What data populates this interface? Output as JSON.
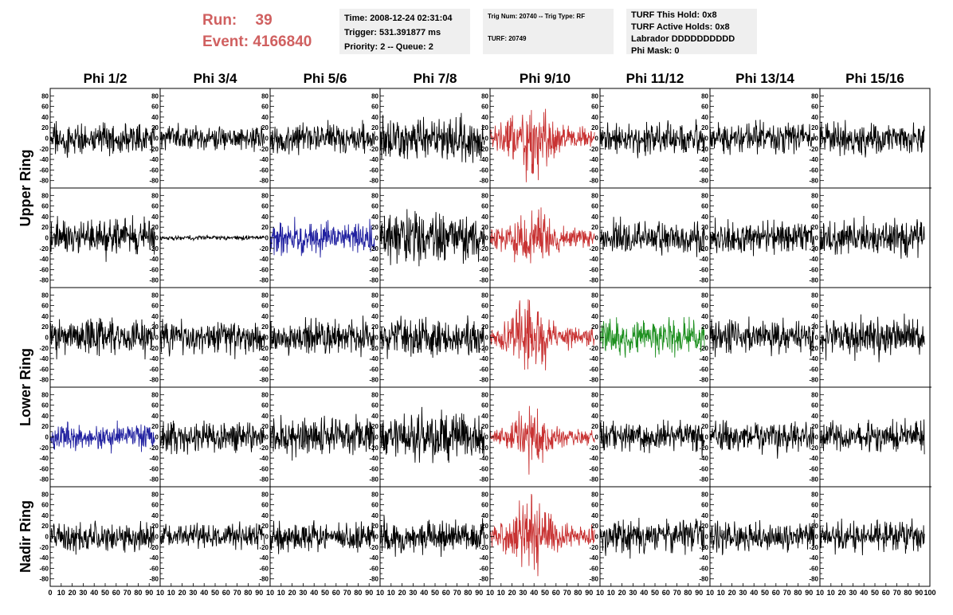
{
  "run_info": {
    "run_label": "Run:",
    "run_value": "39",
    "event_label": "Event:",
    "event_value": "4166840"
  },
  "info_boxes": {
    "time": [
      "Time: 2008-12-24 02:31:04",
      "Trigger: 531.391877 ms",
      "Priority: 2 -- Queue: 2"
    ],
    "trig": [
      "Trig Num: 20740 -- Trig Type: RF",
      "TURF: 20749"
    ],
    "turf": [
      "TURF This Hold: 0x8",
      "TURF Active Holds: 0x8",
      "Labrador DDDDDDDDDD",
      "Phi Mask: 0"
    ]
  },
  "colors": {
    "normal": "#000000",
    "red": "#c83232",
    "blue": "#2020a0",
    "green": "#1e9020"
  },
  "chart_data": {
    "type": "line",
    "columns": [
      "Phi 1/2",
      "Phi 3/4",
      "Phi 5/6",
      "Phi 7/8",
      "Phi 9/10",
      "Phi 11/12",
      "Phi 13/14",
      "Phi 15/16"
    ],
    "ring_labels": [
      {
        "text": "Upper Ring",
        "rows": [
          0,
          1
        ]
      },
      {
        "text": "Lower Ring",
        "rows": [
          2,
          3
        ]
      },
      {
        "text": "Nadir Ring",
        "rows": [
          4,
          4
        ]
      }
    ],
    "xlim": [
      0,
      100
    ],
    "ylim": [
      -85,
      85
    ],
    "yticks": [
      -80,
      -60,
      -40,
      -20,
      0,
      20,
      40,
      60,
      80
    ],
    "xticks": [
      0,
      10,
      20,
      30,
      40,
      50,
      60,
      70,
      80,
      90,
      100
    ],
    "x_range": [
      0,
      95
    ],
    "panels": [
      [
        {
          "amp": 14,
          "color": "normal",
          "seed": 11
        },
        {
          "amp": 11,
          "color": "normal",
          "seed": 12
        },
        {
          "amp": 13,
          "color": "normal",
          "seed": 13
        },
        {
          "amp": 18,
          "color": "normal",
          "seed": 14
        },
        {
          "amp": 30,
          "color": "red",
          "seed": 15,
          "pulse": true
        },
        {
          "amp": 14,
          "color": "normal",
          "seed": 16
        },
        {
          "amp": 13,
          "color": "normal",
          "seed": 17
        },
        {
          "amp": 14,
          "color": "normal",
          "seed": 18
        }
      ],
      [
        {
          "amp": 16,
          "color": "normal",
          "seed": 21
        },
        {
          "amp": 2,
          "color": "normal",
          "seed": 22
        },
        {
          "amp": 14,
          "color": "blue",
          "seed": 23
        },
        {
          "amp": 21,
          "color": "normal",
          "seed": 24
        },
        {
          "amp": 25,
          "color": "red",
          "seed": 25,
          "pulse": true
        },
        {
          "amp": 15,
          "color": "normal",
          "seed": 26
        },
        {
          "amp": 14,
          "color": "normal",
          "seed": 27
        },
        {
          "amp": 16,
          "color": "normal",
          "seed": 28
        }
      ],
      [
        {
          "amp": 16,
          "color": "normal",
          "seed": 31
        },
        {
          "amp": 15,
          "color": "normal",
          "seed": 32
        },
        {
          "amp": 16,
          "color": "normal",
          "seed": 33
        },
        {
          "amp": 18,
          "color": "normal",
          "seed": 34
        },
        {
          "amp": 27,
          "color": "red",
          "seed": 35,
          "pulse": true
        },
        {
          "amp": 15,
          "color": "green",
          "seed": 36
        },
        {
          "amp": 15,
          "color": "normal",
          "seed": 37
        },
        {
          "amp": 17,
          "color": "normal",
          "seed": 38
        }
      ],
      [
        {
          "amp": 12,
          "color": "blue",
          "seed": 41
        },
        {
          "amp": 14,
          "color": "normal",
          "seed": 42
        },
        {
          "amp": 17,
          "color": "normal",
          "seed": 43
        },
        {
          "amp": 20,
          "color": "normal",
          "seed": 44
        },
        {
          "amp": 20,
          "color": "red",
          "seed": 45,
          "pulse": true
        },
        {
          "amp": 14,
          "color": "normal",
          "seed": 46
        },
        {
          "amp": 14,
          "color": "normal",
          "seed": 47
        },
        {
          "amp": 14,
          "color": "normal",
          "seed": 48
        }
      ],
      [
        {
          "amp": 13,
          "color": "normal",
          "seed": 51
        },
        {
          "amp": 11,
          "color": "normal",
          "seed": 52
        },
        {
          "amp": 13,
          "color": "normal",
          "seed": 53
        },
        {
          "amp": 15,
          "color": "normal",
          "seed": 54
        },
        {
          "amp": 27,
          "color": "red",
          "seed": 55,
          "pulse": true
        },
        {
          "amp": 15,
          "color": "normal",
          "seed": 56
        },
        {
          "amp": 14,
          "color": "normal",
          "seed": 57
        },
        {
          "amp": 14,
          "color": "normal",
          "seed": 58
        }
      ]
    ]
  }
}
